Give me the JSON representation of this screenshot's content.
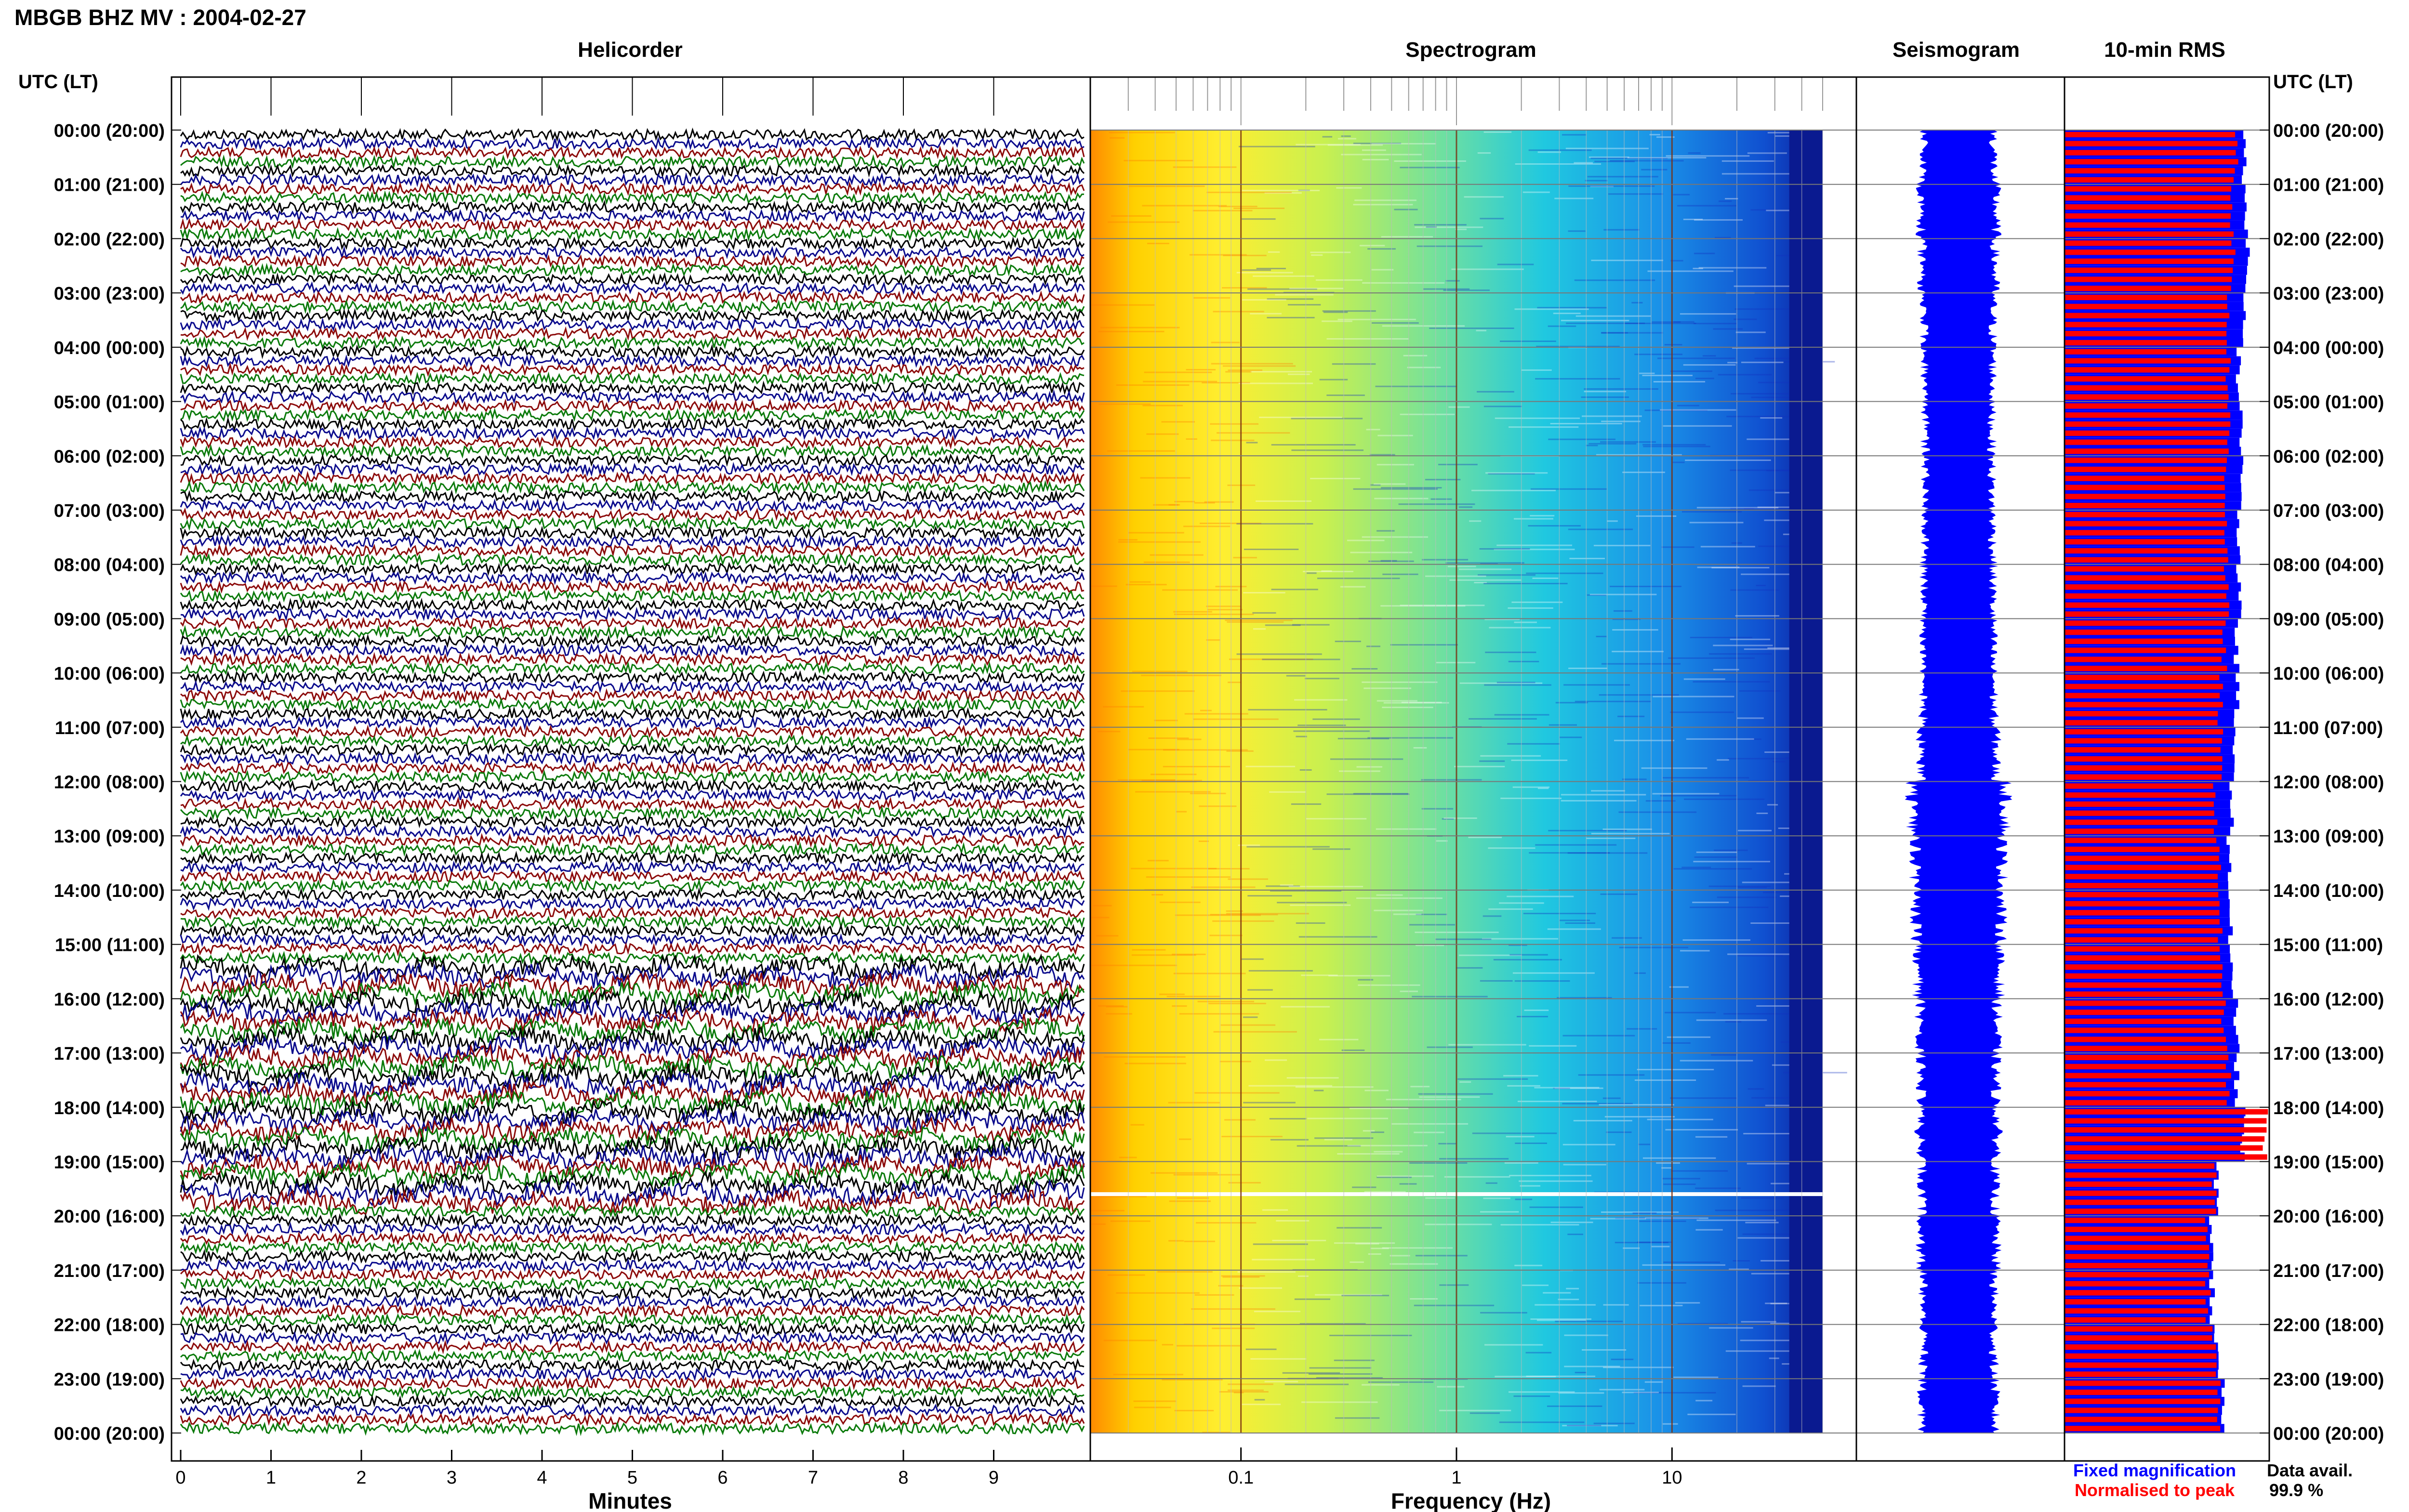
{
  "title": "MBGB BHZ MV : 2004-02-27",
  "left_axis_header": "UTC (LT)",
  "right_axis_header": "UTC (LT)",
  "hour_labels": [
    "00:00 (20:00)",
    "01:00 (21:00)",
    "02:00 (22:00)",
    "03:00 (23:00)",
    "04:00 (00:00)",
    "05:00 (01:00)",
    "06:00 (02:00)",
    "07:00 (03:00)",
    "08:00 (04:00)",
    "09:00 (05:00)",
    "10:00 (06:00)",
    "11:00 (07:00)",
    "12:00 (08:00)",
    "13:00 (09:00)",
    "14:00 (10:00)",
    "15:00 (11:00)",
    "16:00 (12:00)",
    "17:00 (13:00)",
    "18:00 (14:00)",
    "19:00 (15:00)",
    "20:00 (16:00)",
    "21:00 (17:00)",
    "22:00 (18:00)",
    "23:00 (19:00)",
    "00:00 (20:00)"
  ],
  "panels": {
    "helicorder": {
      "title": "Helicorder",
      "xlabel": "Minutes",
      "ticks": [
        "0",
        "1",
        "2",
        "3",
        "4",
        "5",
        "6",
        "7",
        "8",
        "9"
      ]
    },
    "spectrogram": {
      "title": "Spectrogram",
      "xlabel": "Frequency (Hz)",
      "ticks": [
        "0.1",
        "1",
        "10"
      ]
    },
    "seismogram": {
      "title": "Seismogram"
    },
    "rms": {
      "title": "10-min RMS"
    }
  },
  "legend": {
    "fixed": "Fixed magnification",
    "normalised": "Normalised to peak",
    "avail_label": "Data avail.",
    "avail_value": "99.9 %"
  },
  "colors": {
    "trace_cycle": [
      "#000000",
      "#0a0a8c",
      "#8c0a0a",
      "#0a7a0a"
    ],
    "fixed": "#0000ff",
    "normalised": "#ff0000"
  },
  "chart_data": [
    {
      "type": "line",
      "title": "Helicorder",
      "xlabel": "Minutes",
      "xlim": [
        0,
        10
      ],
      "rows_per_hour": 6,
      "total_rows": 144,
      "note_rows": "quiet 00:00-15:00, larger excursions 15:30-19:45 UTC"
    },
    {
      "type": "heatmap",
      "title": "Spectrogram",
      "xlabel": "Frequency (Hz)",
      "xscale": "log",
      "xlim": [
        0.02,
        50
      ],
      "colormap": "jet",
      "gap_hour": 19.6
    },
    {
      "type": "area",
      "title": "Seismogram",
      "series": [
        {
          "values_hourly": [
            0.34,
            0.36,
            0.35,
            0.33,
            0.33,
            0.32,
            0.32,
            0.33,
            0.33,
            0.33,
            0.34,
            0.36,
            0.45,
            0.42,
            0.41,
            0.39,
            0.37,
            0.36,
            0.37,
            0.35,
            0.36,
            0.34,
            0.34,
            0.35
          ]
        }
      ]
    },
    {
      "type": "bar",
      "title": "10-min RMS",
      "series": [
        {
          "name": "Fixed magnification",
          "values_hourly": [
            0.88,
            0.89,
            0.89,
            0.88,
            0.85,
            0.86,
            0.87,
            0.85,
            0.85,
            0.84,
            0.84,
            0.82,
            0.82,
            0.8,
            0.81,
            0.81,
            0.84,
            0.84,
            0.87,
            0.74,
            0.72,
            0.72,
            0.74,
            0.77
          ]
        },
        {
          "name": "Normalised to peak",
          "values_hourly": [
            0.84,
            0.82,
            0.82,
            0.8,
            0.8,
            0.8,
            0.79,
            0.79,
            0.79,
            0.78,
            0.76,
            0.76,
            0.74,
            0.75,
            0.76,
            0.76,
            0.78,
            0.8,
            0.98,
            0.73,
            0.7,
            0.7,
            0.73,
            0.75
          ]
        }
      ]
    }
  ]
}
